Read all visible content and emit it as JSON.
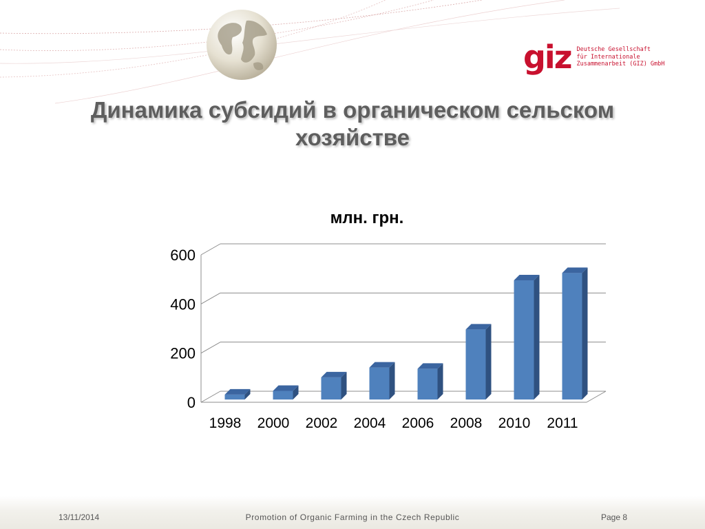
{
  "header": {
    "title_line1": "Динамика субсидий в органическом сельском",
    "title_line2": "хозяйстве",
    "logo": {
      "mark": "giz",
      "line1": "Deutsche Gesellschaft",
      "line2": "für Internationale",
      "line3": "Zusammenarbeit (GIZ) GmbH",
      "color": "#c8102e"
    }
  },
  "chart_data": {
    "type": "bar",
    "title": "млн. грн.",
    "categories": [
      "1998",
      "2000",
      "2002",
      "2004",
      "2006",
      "2008",
      "2010",
      "2011"
    ],
    "values": [
      20,
      35,
      90,
      130,
      125,
      285,
      485,
      515
    ],
    "yticks": [
      0,
      200,
      400,
      600
    ],
    "ylim": [
      0,
      600
    ],
    "grid": true,
    "legend": "none",
    "bar_color": "#4f81bd"
  },
  "footer": {
    "date": "13/11/2014",
    "center": "Promotion of Organic Farming in the Czech Republic",
    "page": "Page 8"
  }
}
